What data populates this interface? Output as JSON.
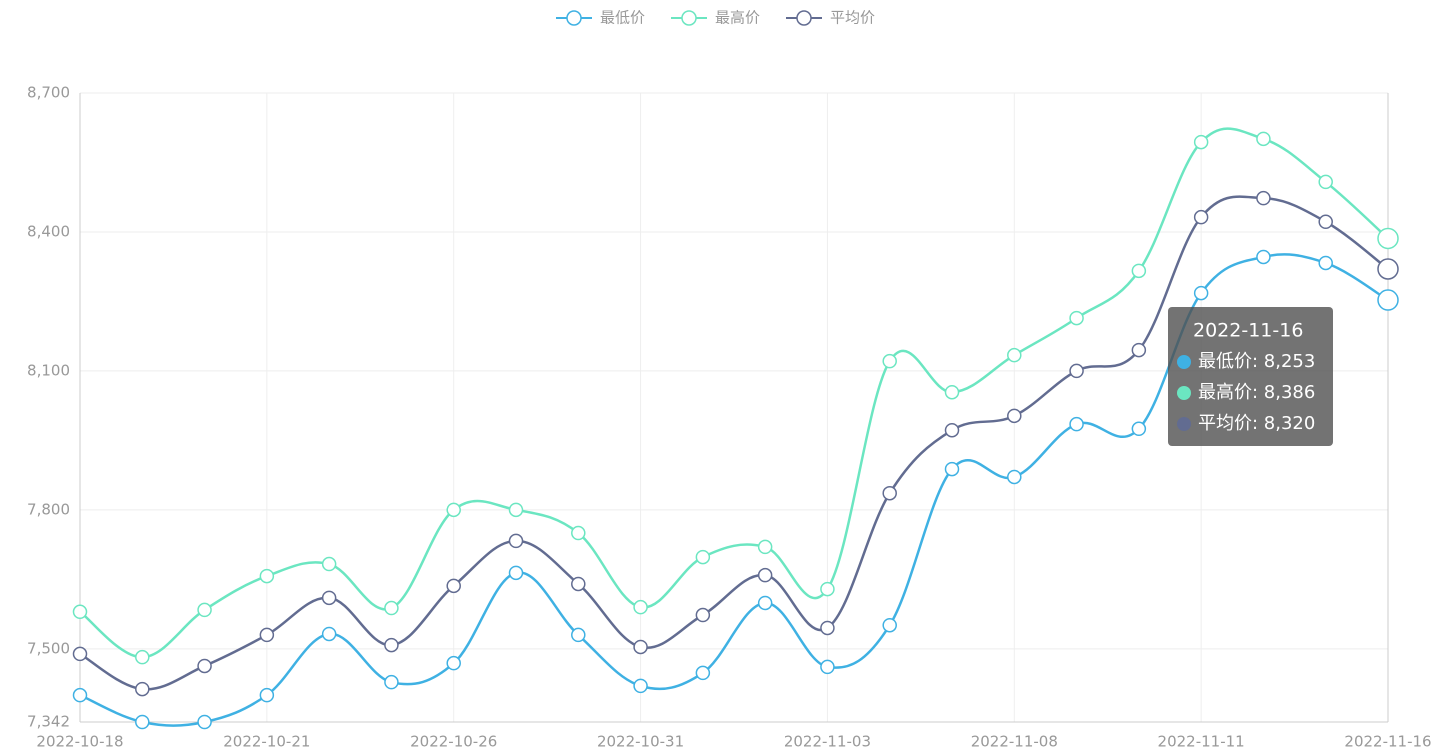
{
  "chart_data": {
    "type": "line",
    "categories": [
      "2022-10-18",
      null,
      null,
      "2022-10-21",
      null,
      null,
      "2022-10-26",
      null,
      null,
      "2022-10-31",
      null,
      null,
      "2022-11-03",
      null,
      null,
      "2022-11-08",
      null,
      null,
      "2022-11-11",
      null,
      null,
      "2022-11-16"
    ],
    "series": [
      {
        "name": "最低价",
        "color": "#3fb1e3",
        "values": [
          7400,
          7342,
          7342,
          7400,
          7532,
          7428,
          7469,
          7664,
          7530,
          7420,
          7448,
          7599,
          7461,
          7551,
          7888,
          7871,
          7985,
          7975,
          8268,
          8346,
          8333,
          8253
        ]
      },
      {
        "name": "最高价",
        "color": "#6be6c1",
        "values": [
          7580,
          7482,
          7584,
          7657,
          7683,
          7588,
          7800,
          7800,
          7750,
          7590,
          7698,
          7720,
          7629,
          8121,
          8054,
          8134,
          8214,
          8316,
          8594,
          8601,
          8508,
          8386
        ]
      },
      {
        "name": "平均价",
        "color": "#626c91",
        "values": [
          7489,
          7413,
          7463,
          7530,
          7610,
          7508,
          7636,
          7733,
          7640,
          7504,
          7573,
          7659,
          7545,
          7836,
          7972,
          8003,
          8100,
          8145,
          8432,
          8473,
          8422,
          8320
        ]
      }
    ],
    "ylim": [
      7342,
      8700
    ],
    "yticks": [
      {
        "value": 7342,
        "label": "7,342"
      },
      {
        "value": 7500,
        "label": "7,500"
      },
      {
        "value": 7800,
        "label": "7,800"
      },
      {
        "value": 8100,
        "label": "8,100"
      },
      {
        "value": 8400,
        "label": "8,400"
      },
      {
        "value": 8700,
        "label": "8,700"
      }
    ],
    "grid": true,
    "legend": "top",
    "tooltip": {
      "rows": [
        "最低价: 8,253",
        "最高价: 8,386",
        "平均价: 8,320"
      ]
    }
  }
}
